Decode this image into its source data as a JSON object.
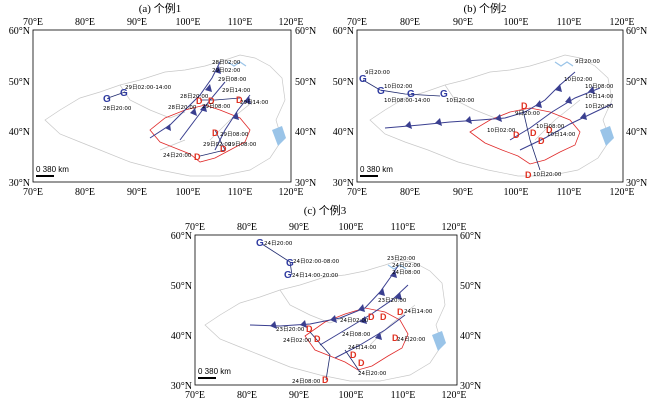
{
  "panels": [
    {
      "title": "(a) 个例1",
      "x_ticks": [
        "70°E",
        "80°E",
        "90°E",
        "100°E",
        "110°E",
        "120°E"
      ],
      "y_ticks": [
        "60°N",
        "50°N",
        "40°N",
        "30°N"
      ],
      "scale_label": "0   380 km",
      "high_symbols": [
        "G",
        "G"
      ],
      "low_symbols": [
        "D",
        "D",
        "D",
        "D",
        "D",
        "D"
      ],
      "labels": [
        "28日20:00",
        "29日02:00-14:00",
        "28日20:00",
        "28日20:00",
        "29日02:00",
        "29日08:00",
        "29日14:00",
        "28日02:00",
        "29日08:00",
        "29日14:00",
        "29日08:00",
        "24日20:00",
        "29日02:00",
        "29日08:00"
      ]
    },
    {
      "title": "(b) 个例2",
      "x_ticks": [
        "70°E",
        "80°E",
        "90°E",
        "100°E",
        "110°E",
        "120°E"
      ],
      "y_ticks": [
        "60°N",
        "50°N",
        "40°N",
        "30°N"
      ],
      "scale_label": "0   380 km",
      "high_symbols": [
        "G",
        "G",
        "G",
        "G"
      ],
      "low_symbols": [
        "D",
        "D",
        "D",
        "D",
        "D",
        "D"
      ],
      "labels": [
        "9日20:00",
        "10日02:00",
        "10日08:00-14:00",
        "10日20:00",
        "9日20:00",
        "10日02:00",
        "10日08:00",
        "10日14:00",
        "10日20:00",
        "9日20:00",
        "10日02:00",
        "10日08:00",
        "10日14:00",
        "10日20:00"
      ]
    },
    {
      "title": "(c) 个例3",
      "x_ticks": [
        "70°E",
        "80°E",
        "90°E",
        "100°E",
        "110°E",
        "120°E"
      ],
      "y_ticks": [
        "60°N",
        "50°N",
        "40°N",
        "30°N"
      ],
      "scale_label": "0   380 km",
      "high_symbols": [
        "G",
        "G",
        "G"
      ],
      "low_symbols": [
        "D",
        "D",
        "D",
        "D",
        "D",
        "D",
        "D",
        "D",
        "D"
      ],
      "labels": [
        "24日20:00",
        "24日02:00-08:00",
        "24日14:00-20:00",
        "23日20:00",
        "24日02:00",
        "24日08:00",
        "23日20:00",
        "24日14:00",
        "23日20:00",
        "24日02:00",
        "24日08:00",
        "24日02:00",
        "24日20:00",
        "24日14:00",
        "24日08:00",
        "24日20:00"
      ]
    }
  ]
}
